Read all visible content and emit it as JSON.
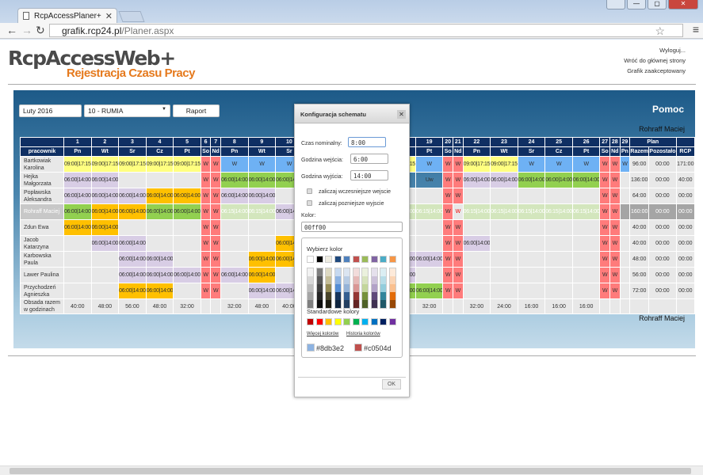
{
  "browser": {
    "tab_title": "RcpAccessPlaner+",
    "url_host": "grafik.rcp24.pl",
    "url_path": "/Planer.aspx"
  },
  "logo": {
    "line1": "RcpAccessWeb+",
    "line2": "Rejestracja Czasu Pracy"
  },
  "links": [
    "Wyloguj...",
    "Wróć do głównej strony",
    "Grafik zaakceptowany"
  ],
  "controls": {
    "month": "Luty 2016",
    "location": "10 - RUMIA",
    "report_button": "Raport",
    "help": "Pomoc",
    "user": "Rohraff Maciej"
  },
  "colors": {
    "header": "#0f2f63",
    "yellow": "#ffff80",
    "purple": "#d8cde5",
    "orange": "#ffc000",
    "green": "#92d050",
    "light_green": "#d3e6bd",
    "blue": "#6eb1f4",
    "red": "#ff7b7b"
  },
  "table": {
    "employee_header": "pracownik",
    "plan_header": "Plan",
    "cols": [
      "Razem",
      "Pozostało",
      "RCP"
    ],
    "days": [
      1,
      2,
      3,
      4,
      5,
      6,
      7,
      8,
      9,
      10,
      11,
      12,
      13,
      14,
      15,
      16,
      17,
      18,
      19,
      20,
      21,
      22,
      23,
      24,
      25,
      26,
      27,
      28,
      29
    ],
    "weekdays": [
      "Pn",
      "Wt",
      "Sr",
      "Cz",
      "Pt",
      "So",
      "Nd",
      "Pn",
      "Wt",
      "Sr",
      "Cz",
      "Pt",
      "So",
      "Nd",
      "Pn",
      "Wt",
      "Sr",
      "Cz",
      "Pt",
      "So",
      "Nd",
      "Pn",
      "Wt",
      "Sr",
      "Cz",
      "Pt",
      "So",
      "Nd",
      "Pn"
    ],
    "legend": {
      "y": "09:00|17:15",
      "p": "06:00|14:00",
      "o": "06:00|14:00",
      "gr": "06:00|14:00",
      "lg": "06:15|14:00",
      "b": "W",
      "r": "W",
      "rw": "W",
      "uw": "Uw"
    },
    "rows": [
      {
        "name": "Bartkowiak Karolina",
        "cells": "y y y y y r r b b b b . . . . . . y b r r y y b b b r r b",
        "plan": [
          "96:00",
          "00:00",
          "171:00"
        ]
      },
      {
        "name": "Hejka Małgorzata",
        "cells": "p p e e e r r gr gr gr o . . . . . . uw uw r r p p gr gr gr r r e",
        "plan": [
          "136:00",
          "00:00",
          "40:00"
        ]
      },
      {
        "name": "Popławska Aleksandra",
        "cells": "p p p o o r r p p e e . . . . . . e e r r e e e e e r r e",
        "plan": [
          "64:00",
          "00:00",
          "00:00"
        ]
      },
      {
        "name": "Rohraff Maciej",
        "me": true,
        "cells": "gr o o gr gr r r lg lg p p . . . . . . lg lg r rw lg lg lg lg lg r r dk",
        "plan": [
          "160:00",
          "00:00",
          "00:00"
        ]
      },
      {
        "name": "Zdun Ewa",
        "cells": "o o e e e r r e e e p . . . . . . e e r r e e e e e r r e",
        "plan": [
          "40:00",
          "00:00",
          "00:00"
        ]
      },
      {
        "name": "Jacob Katarzyna",
        "cells": "e p p e e r r e e o o . . . . . . e e r r p e e e e r r e",
        "plan": [
          "40:00",
          "00:00",
          "00:00"
        ]
      },
      {
        "name": "Karbowska Paula",
        "cells": "e e p p e r r e o o e . . . . . . p p r r e e e e e r r e",
        "plan": [
          "48:00",
          "00:00",
          "00:00"
        ]
      },
      {
        "name": "Lawer Paulina",
        "cells": "e e p p p r r p o e e . . . . . . p e r r e e e e e r r e",
        "plan": [
          "56:00",
          "00:00",
          "00:00"
        ]
      },
      {
        "name": "Przychodzeń Agnieszka",
        "cells": "e e o o e r r e p p e . . . . . . gr gr r r e e e e e r r e",
        "plan": [
          "72:00",
          "00:00",
          "00:00"
        ]
      }
    ],
    "sum_label": "Obsada razem w godzinach",
    "sums": [
      "40:00",
      "48:00",
      "56:00",
      "48:00",
      "32:00",
      "",
      "",
      "32:00",
      "48:00",
      "40:00",
      "32:00",
      "",
      "",
      "",
      "",
      "",
      "",
      "",
      "32:00",
      "",
      "",
      "32:00",
      "24:00",
      "16:00",
      "16:00",
      "16:00",
      "",
      "",
      ""
    ]
  },
  "modal": {
    "title": "Konfiguracja schematu",
    "nominal_label": "Czas nominalny:",
    "nominal": "8:00",
    "in_label": "Godzina wejścia:",
    "in": "6:00",
    "out_label": "Godzina wyjścia:",
    "out": "14:00",
    "early_label": "zaliczaj wczesniejsze wejscie",
    "late_label": "zaliczaj pozniejsze wyjscie",
    "color_label": "Kolor:",
    "color": "00ff00",
    "picker": {
      "title": "Wybierz kolor",
      "theme": [
        "#ffffff",
        "#000000",
        "#eeece1",
        "#1f497d",
        "#4f81bd",
        "#c0504d",
        "#9bbb59",
        "#8064a2",
        "#4bacc6",
        "#f79646"
      ],
      "shades": [
        [
          "#f2f2f2",
          "#d8d8d8",
          "#bfbfbf",
          "#a5a5a5",
          "#7f7f7f"
        ],
        [
          "#7f7f7f",
          "#595959",
          "#3f3f3f",
          "#262626",
          "#0c0c0c"
        ],
        [
          "#ddd9c3",
          "#c4bd97",
          "#938953",
          "#494429",
          "#1d1b10"
        ],
        [
          "#c6d9f0",
          "#8db3e2",
          "#548dd4",
          "#17365d",
          "#0f243e"
        ],
        [
          "#dbe5f1",
          "#b8cce4",
          "#95b3d7",
          "#366092",
          "#244061"
        ],
        [
          "#f2dcdb",
          "#e5b9b7",
          "#d99694",
          "#953734",
          "#632423"
        ],
        [
          "#ebf1dd",
          "#d7e3bc",
          "#c3d69b",
          "#76923c",
          "#4f6128"
        ],
        [
          "#e5e0ec",
          "#ccc1d9",
          "#b2a2c7",
          "#5f497a",
          "#3f3151"
        ],
        [
          "#dbeef3",
          "#b7dde8",
          "#92cddc",
          "#31859b",
          "#205867"
        ],
        [
          "#fdeada",
          "#fbd5b5",
          "#fac08f",
          "#e36c09",
          "#974806"
        ]
      ],
      "standard_title": "Standardowe kolory",
      "standard": [
        "#c00000",
        "#ff0000",
        "#ffc000",
        "#ffff00",
        "#92d050",
        "#00b050",
        "#00b0f0",
        "#0070c0",
        "#002060",
        "#7030a0"
      ],
      "more": "Więcej kolorów",
      "history": "Historia kolorów",
      "recent": [
        {
          "hex": "#8db3e2"
        },
        {
          "hex": "#c0504d"
        }
      ]
    },
    "ok": "OK"
  }
}
